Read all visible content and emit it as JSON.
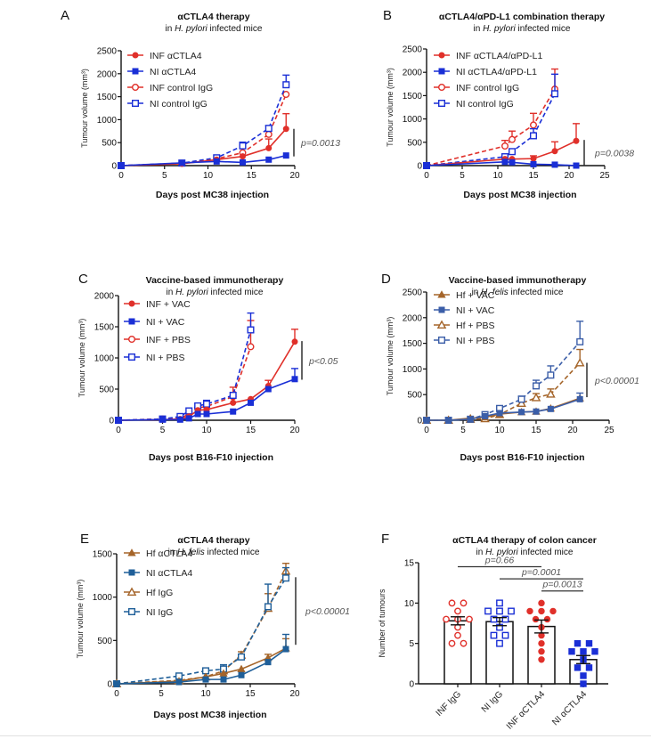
{
  "colors": {
    "red": "#e0302a",
    "blue": "#1a2fd6",
    "brown": "#a5652a",
    "steelblue": "#3b5ea8",
    "tealblue": "#1f5f99",
    "axis": "#111111",
    "pval": "#555555"
  },
  "chart_data": [
    {
      "panel": "A",
      "type": "line",
      "title": "αCTLA4 therapy",
      "subtitle_pre": "in ",
      "subtitle_italic": "H. pylori",
      "subtitle_post": " infected mice",
      "xlabel": "Days post MC38 injection",
      "ylabel": "Tumour volume (mm³)",
      "xlim": [
        0,
        20
      ],
      "ylim": [
        0,
        2500
      ],
      "xticks": [
        0,
        5,
        10,
        15,
        20
      ],
      "yticks": [
        0,
        500,
        1000,
        1500,
        2000,
        2500
      ],
      "legend": "top-left",
      "annotation": "p=0.0013",
      "bracket": [
        200,
        800
      ],
      "series": [
        {
          "name": "INF αCTLA4",
          "color": "red",
          "marker": "circle",
          "filled": true,
          "dashed": false,
          "x": [
            0,
            7,
            11,
            14,
            17,
            19
          ],
          "y": [
            0,
            40,
            130,
            200,
            380,
            800
          ],
          "err": [
            0,
            0,
            0,
            0,
            200,
            330
          ]
        },
        {
          "name": "NI αCTLA4",
          "color": "blue",
          "marker": "square",
          "filled": true,
          "dashed": false,
          "x": [
            0,
            7,
            11,
            14,
            17,
            19
          ],
          "y": [
            0,
            60,
            90,
            70,
            130,
            220
          ],
          "err": [
            0,
            0,
            0,
            0,
            0,
            0
          ]
        },
        {
          "name": "INF control IgG",
          "color": "red",
          "marker": "circle",
          "filled": false,
          "dashed": true,
          "x": [
            0,
            7,
            11,
            14,
            17,
            19
          ],
          "y": [
            0,
            50,
            150,
            280,
            680,
            1550
          ],
          "err": [
            0,
            0,
            0,
            0,
            0,
            0
          ]
        },
        {
          "name": "NI control IgG",
          "color": "blue",
          "marker": "square",
          "filled": false,
          "dashed": true,
          "x": [
            0,
            7,
            11,
            14,
            17,
            19
          ],
          "y": [
            0,
            55,
            170,
            430,
            810,
            1760
          ],
          "err": [
            0,
            0,
            0,
            80,
            60,
            210
          ]
        }
      ]
    },
    {
      "panel": "B",
      "type": "line",
      "title": "αCTLA4/αPD-L1 combination therapy",
      "subtitle_pre": "in ",
      "subtitle_italic": "H. pylori",
      "subtitle_post": " infected mice",
      "xlabel": "Days post MC38 injection",
      "ylabel": "Tumour volume (mm³)",
      "xlim": [
        0,
        25
      ],
      "ylim": [
        0,
        2500
      ],
      "xticks": [
        0,
        5,
        10,
        15,
        20,
        25
      ],
      "yticks": [
        0,
        500,
        1000,
        1500,
        2000,
        2500
      ],
      "legend": "top-left",
      "annotation": "p=0.0038",
      "bracket": [
        0,
        550
      ],
      "series": [
        {
          "name": "INF  αCTLA4/αPD-L1",
          "color": "red",
          "marker": "circle",
          "filled": true,
          "dashed": false,
          "x": [
            0,
            11,
            12,
            15,
            18,
            21
          ],
          "y": [
            0,
            140,
            140,
            150,
            310,
            530
          ],
          "err": [
            0,
            0,
            0,
            60,
            200,
            370
          ]
        },
        {
          "name": "NI αCTLA4/αPD-L1",
          "color": "blue",
          "marker": "square",
          "filled": true,
          "dashed": false,
          "x": [
            0,
            11,
            12,
            15,
            18,
            21
          ],
          "y": [
            0,
            80,
            70,
            30,
            20,
            0
          ],
          "err": [
            0,
            0,
            0,
            0,
            0,
            0
          ]
        },
        {
          "name": "INF control IgG",
          "color": "red",
          "marker": "circle",
          "filled": false,
          "dashed": true,
          "x": [
            0,
            11,
            12,
            15,
            18
          ],
          "y": [
            0,
            420,
            560,
            870,
            1640
          ],
          "err": [
            0,
            120,
            180,
            250,
            430
          ]
        },
        {
          "name": "NI control IgG",
          "color": "blue",
          "marker": "square",
          "filled": false,
          "dashed": true,
          "x": [
            0,
            11,
            12,
            15,
            18
          ],
          "y": [
            0,
            190,
            300,
            640,
            1540
          ],
          "err": [
            0,
            0,
            0,
            150,
            420
          ]
        }
      ]
    },
    {
      "panel": "C",
      "type": "line",
      "title": "Vaccine-based immunotherapy",
      "subtitle_pre": "in ",
      "subtitle_italic": "H. pylori",
      "subtitle_post": " infected mice",
      "xlabel": "Days post B16-F10 injection",
      "ylabel": "Tumour volume (mm³)",
      "xlim": [
        0,
        20
      ],
      "ylim": [
        0,
        2000
      ],
      "xticks": [
        0,
        5,
        10,
        15,
        20
      ],
      "yticks": [
        0,
        500,
        1000,
        1500,
        2000
      ],
      "legend": "top-left",
      "annotation": "p<0.05",
      "bracket": [
        650,
        1270
      ],
      "series": [
        {
          "name": "INF + VAC",
          "color": "red",
          "marker": "circle",
          "filled": true,
          "dashed": false,
          "x": [
            0,
            5,
            7,
            8,
            9,
            10,
            13,
            15,
            17,
            20
          ],
          "y": [
            0,
            10,
            20,
            60,
            160,
            170,
            280,
            340,
            550,
            1260
          ],
          "err": [
            0,
            0,
            0,
            0,
            0,
            0,
            0,
            0,
            90,
            200
          ]
        },
        {
          "name": "NI + VAC",
          "color": "blue",
          "marker": "square",
          "filled": true,
          "dashed": false,
          "x": [
            0,
            5,
            7,
            8,
            9,
            10,
            13,
            15,
            17,
            20
          ],
          "y": [
            0,
            10,
            10,
            30,
            100,
            100,
            140,
            280,
            500,
            660
          ],
          "err": [
            0,
            0,
            0,
            0,
            0,
            0,
            0,
            0,
            0,
            170
          ]
        },
        {
          "name": "INF + PBS",
          "color": "red",
          "marker": "circle",
          "filled": false,
          "dashed": true,
          "x": [
            0,
            5,
            7,
            8,
            9,
            10,
            13,
            15
          ],
          "y": [
            0,
            20,
            30,
            100,
            200,
            220,
            380,
            1180
          ],
          "err": [
            0,
            0,
            0,
            0,
            0,
            0,
            150,
            420
          ]
        },
        {
          "name": "NI + PBS",
          "color": "blue",
          "marker": "square",
          "filled": false,
          "dashed": true,
          "x": [
            0,
            5,
            7,
            8,
            9,
            10,
            13,
            15
          ],
          "y": [
            0,
            20,
            60,
            150,
            230,
            260,
            400,
            1450
          ],
          "err": [
            0,
            0,
            0,
            0,
            0,
            60,
            0,
            270
          ]
        }
      ]
    },
    {
      "panel": "D",
      "type": "line",
      "title": "Vaccine-based immunotherapy",
      "subtitle_pre": "in ",
      "subtitle_italic": "H. felis",
      "subtitle_post": " infected mice",
      "xlabel": "Days post B16-F10 injection",
      "ylabel": "Tumour volume (mm³)",
      "xlim": [
        0,
        25
      ],
      "ylim": [
        0,
        2500
      ],
      "xticks": [
        0,
        5,
        10,
        15,
        20,
        25
      ],
      "yticks": [
        0,
        500,
        1000,
        1500,
        2000,
        2500
      ],
      "legend": "top-left",
      "annotation": "p<0.00001",
      "bracket": [
        450,
        1120
      ],
      "series": [
        {
          "name": "Hf + VAC",
          "color": "brown",
          "marker": "triangle",
          "filled": true,
          "dashed": false,
          "x": [
            0,
            3,
            6,
            8,
            10,
            13,
            15,
            17,
            21
          ],
          "y": [
            0,
            0,
            40,
            60,
            120,
            160,
            170,
            230,
            430
          ],
          "err": [
            0,
            0,
            0,
            0,
            0,
            0,
            0,
            0,
            0
          ]
        },
        {
          "name": "NI + VAC",
          "color": "steelblue",
          "marker": "square",
          "filled": true,
          "dashed": false,
          "x": [
            0,
            3,
            6,
            8,
            10,
            13,
            15,
            17,
            21
          ],
          "y": [
            0,
            0,
            20,
            80,
            140,
            160,
            170,
            220,
            410
          ],
          "err": [
            0,
            0,
            0,
            0,
            0,
            0,
            0,
            0,
            120
          ]
        },
        {
          "name": "Hf + PBS",
          "color": "brown",
          "marker": "triangle",
          "filled": false,
          "dashed": true,
          "x": [
            0,
            3,
            6,
            8,
            10,
            13,
            15,
            17,
            21
          ],
          "y": [
            0,
            0,
            20,
            30,
            110,
            330,
            440,
            510,
            1120
          ],
          "err": [
            0,
            0,
            0,
            0,
            0,
            0,
            80,
            100,
            260
          ]
        },
        {
          "name": "NI + PBS",
          "color": "steelblue",
          "marker": "square",
          "filled": false,
          "dashed": true,
          "x": [
            0,
            3,
            6,
            8,
            10,
            13,
            15,
            17,
            21
          ],
          "y": [
            0,
            0,
            20,
            110,
            230,
            410,
            670,
            880,
            1530
          ],
          "err": [
            0,
            0,
            0,
            0,
            0,
            60,
            110,
            180,
            400
          ]
        }
      ]
    },
    {
      "panel": "E",
      "type": "line",
      "title": "αCTLA4 therapy",
      "subtitle_pre": "in ",
      "subtitle_italic": "H. felis",
      "subtitle_post": " infected mice",
      "xlabel": "Days post MC38 injection",
      "ylabel": "Tumour volume (mm³)",
      "xlim": [
        0,
        20
      ],
      "ylim": [
        0,
        1500
      ],
      "xticks": [
        0,
        5,
        10,
        15,
        20
      ],
      "yticks": [
        0,
        500,
        1000,
        1500
      ],
      "legend": "top-left",
      "annotation": "p<0.00001",
      "bracket": [
        450,
        1230
      ],
      "series": [
        {
          "name": "Hf αCTLA4",
          "color": "brown",
          "marker": "triangle",
          "filled": true,
          "dashed": false,
          "x": [
            0,
            7,
            10,
            12,
            14,
            17,
            19
          ],
          "y": [
            0,
            30,
            80,
            120,
            170,
            300,
            410
          ],
          "err": [
            0,
            0,
            0,
            0,
            0,
            40,
            110
          ]
        },
        {
          "name": "NI αCTLA4",
          "color": "tealblue",
          "marker": "square",
          "filled": true,
          "dashed": false,
          "x": [
            0,
            7,
            10,
            12,
            14,
            17,
            19
          ],
          "y": [
            0,
            20,
            50,
            50,
            100,
            250,
            400
          ],
          "err": [
            0,
            0,
            0,
            0,
            0,
            0,
            170
          ]
        },
        {
          "name": "Hf IgG",
          "color": "brown",
          "marker": "triangle",
          "filled": false,
          "dashed": true,
          "x": [
            0,
            7,
            10,
            12,
            14,
            17,
            19
          ],
          "y": [
            0,
            40,
            80,
            150,
            330,
            870,
            1300
          ],
          "err": [
            0,
            0,
            0,
            0,
            40,
            170,
            90
          ]
        },
        {
          "name": "NI IgG",
          "color": "tealblue",
          "marker": "square",
          "filled": false,
          "dashed": true,
          "x": [
            0,
            7,
            10,
            12,
            14,
            17,
            19
          ],
          "y": [
            0,
            90,
            150,
            170,
            310,
            890,
            1220
          ],
          "err": [
            0,
            0,
            0,
            50,
            0,
            260,
            120
          ]
        }
      ]
    },
    {
      "panel": "F",
      "type": "bar",
      "title": "αCTLA4 therapy of colon cancer",
      "subtitle_pre": "in ",
      "subtitle_italic": "H. pylori",
      "subtitle_post": " infected mice",
      "xlabel": "",
      "ylabel": "Number of tumours",
      "ylim": [
        0,
        15
      ],
      "yticks": [
        0,
        5,
        10,
        15
      ],
      "categories": [
        "INF IgG",
        "NI IgG",
        "INF  αCTLA4",
        "NI  αCTLA4"
      ],
      "values": [
        7.8,
        7.7,
        7.1,
        3.0
      ],
      "sem": [
        0.5,
        0.5,
        0.8,
        0.5
      ],
      "point_styles": [
        {
          "color": "red",
          "marker": "circle",
          "filled": false
        },
        {
          "color": "blue",
          "marker": "square",
          "filled": false
        },
        {
          "color": "red",
          "marker": "circle",
          "filled": true
        },
        {
          "color": "blue",
          "marker": "square",
          "filled": true
        }
      ],
      "points": [
        [
          10,
          10,
          9,
          8,
          8,
          8,
          7,
          6,
          5,
          5
        ],
        [
          10,
          9,
          9,
          9,
          8,
          8,
          7,
          6,
          6,
          5
        ],
        [
          10,
          9,
          9,
          9,
          8,
          8,
          7,
          6,
          5,
          4,
          3
        ],
        [
          5,
          5,
          4,
          4,
          4,
          3,
          2,
          2,
          1,
          0
        ]
      ],
      "comparisons": [
        {
          "from": 0,
          "to": 2,
          "label": "p=0.66",
          "level": 14.5
        },
        {
          "from": 1,
          "to": 3,
          "label": "p=0.0001",
          "level": 13.0
        },
        {
          "from": 2,
          "to": 3,
          "label": "p=0.0013",
          "level": 11.5
        }
      ]
    }
  ]
}
